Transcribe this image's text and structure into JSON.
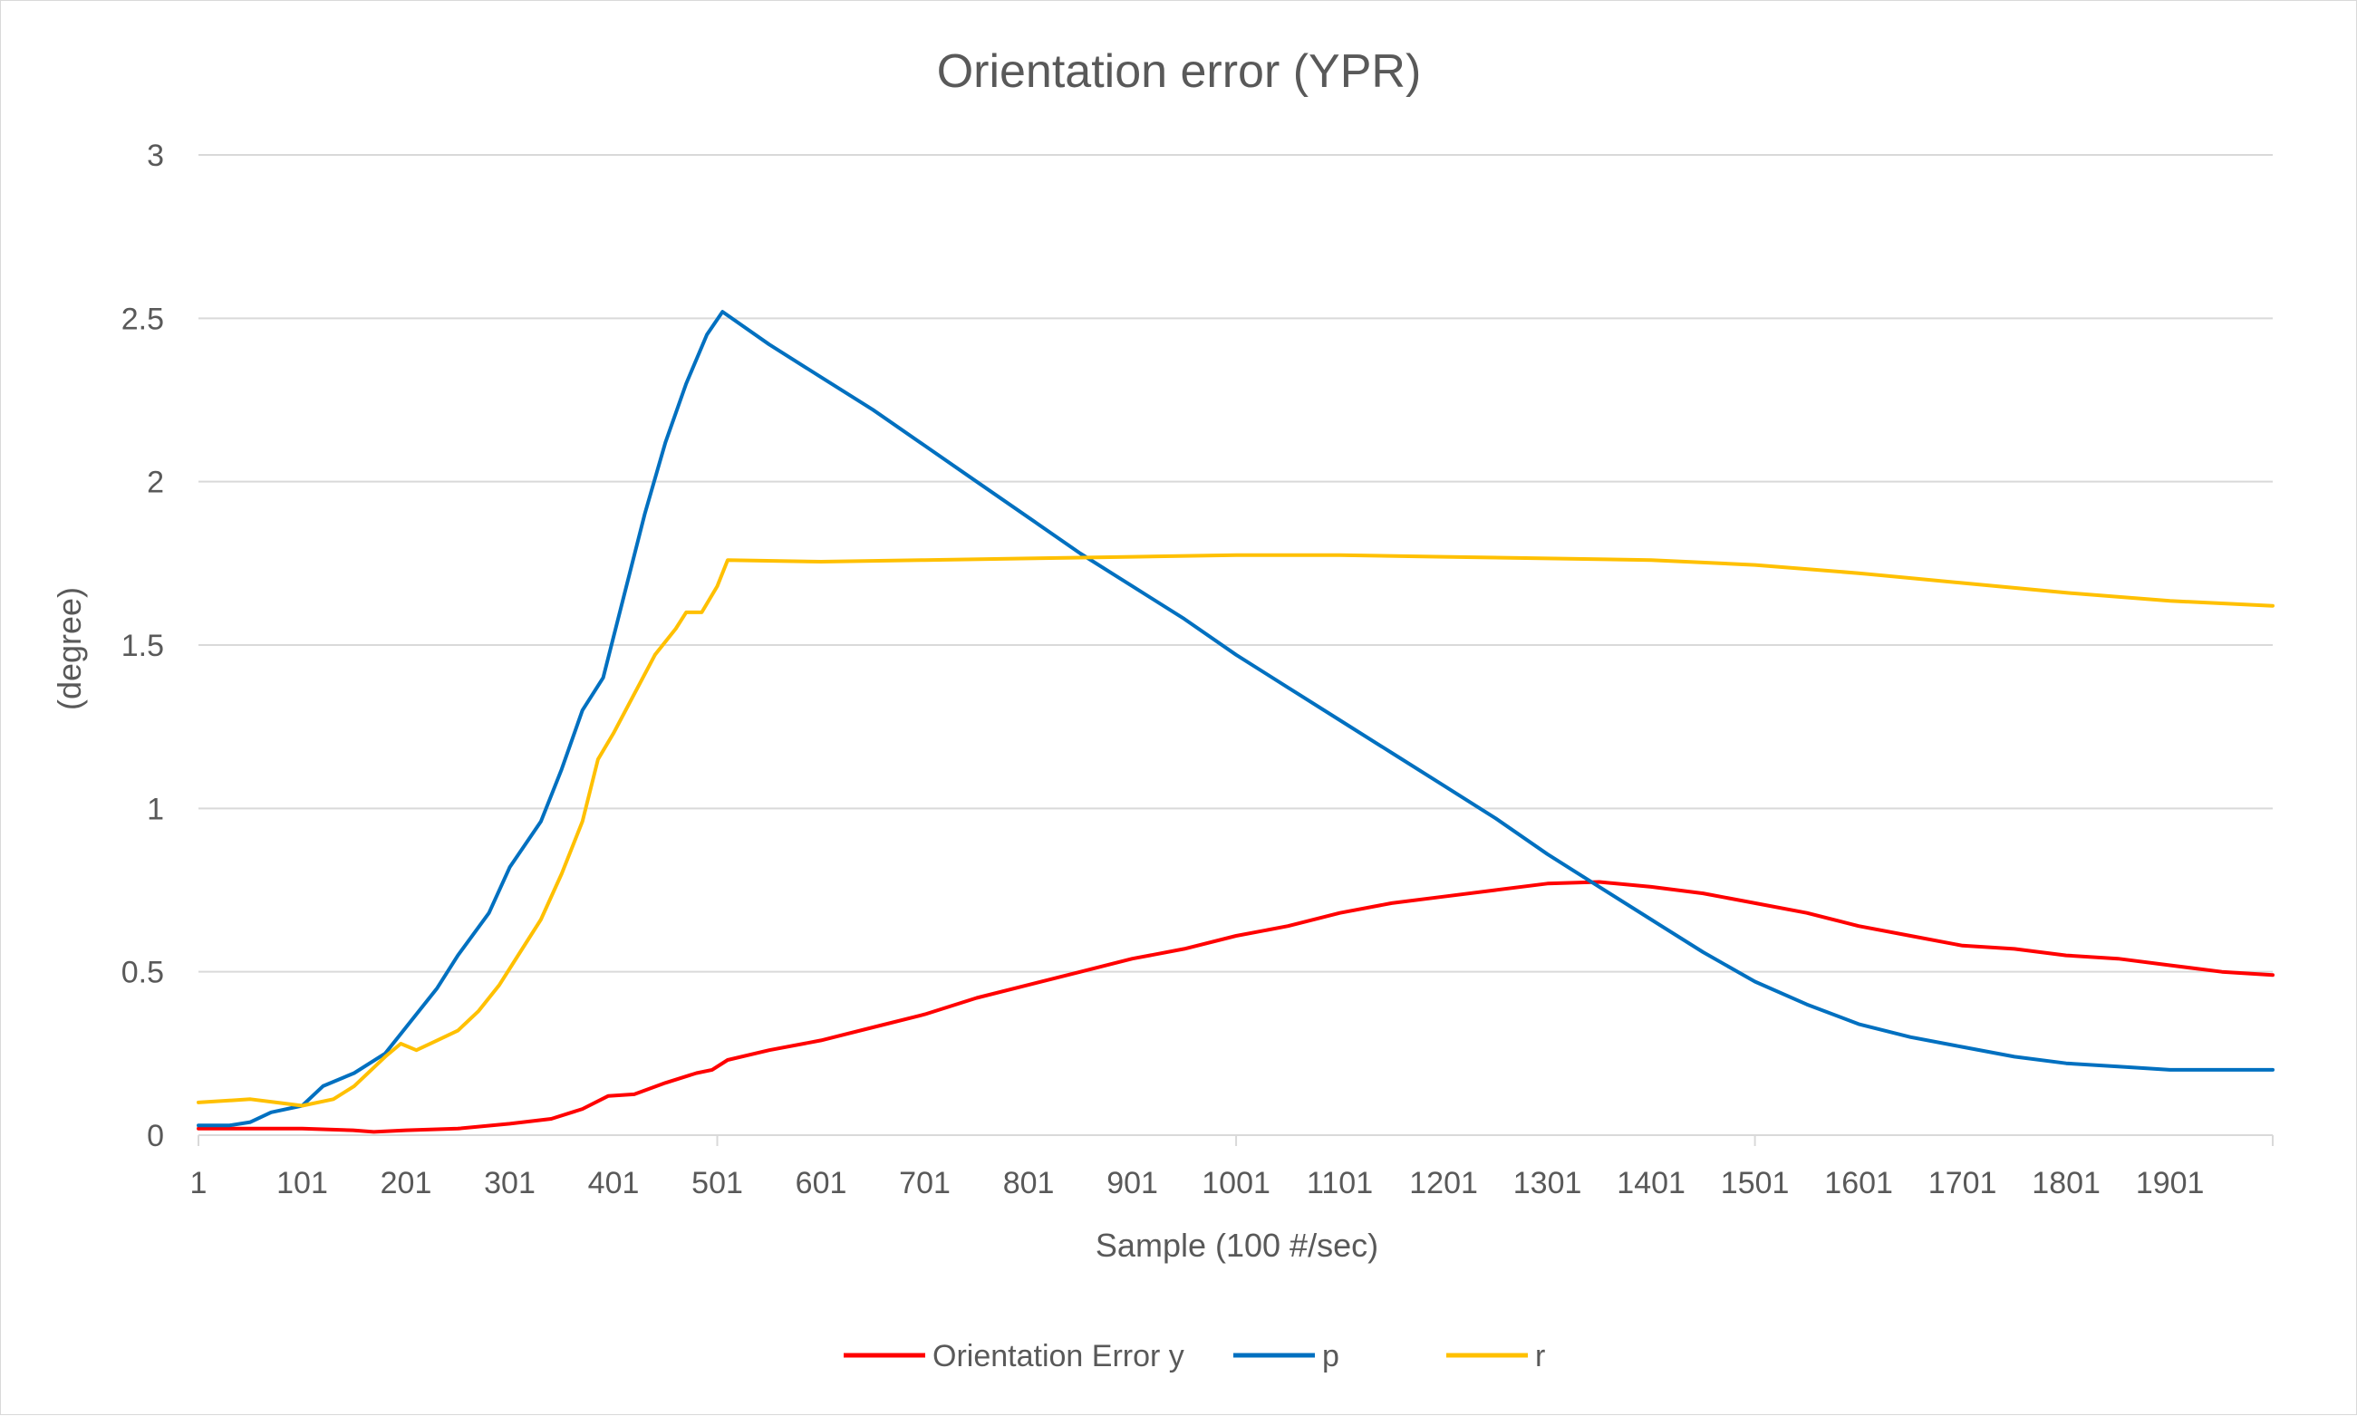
{
  "chart_data": {
    "type": "line",
    "title": "Orientation error (YPR)",
    "xlabel": "Sample (100 #/sec)",
    "ylabel": "(degree)",
    "xlim": [
      1,
      2000
    ],
    "ylim": [
      0,
      3
    ],
    "x_ticks": [
      "1",
      "101",
      "201",
      "301",
      "401",
      "501",
      "601",
      "701",
      "801",
      "901",
      "1001",
      "1101",
      "1201",
      "1301",
      "1401",
      "1501",
      "1601",
      "1701",
      "1801",
      "1901"
    ],
    "y_ticks": [
      "0",
      "0.5",
      "1",
      "1.5",
      "2",
      "2.5",
      "3"
    ],
    "grid": true,
    "legend_position": "bottom",
    "series": [
      {
        "name": "Orientation Error y",
        "color": "#ff0000",
        "points": [
          [
            1,
            0.02
          ],
          [
            101,
            0.02
          ],
          [
            150,
            0.015
          ],
          [
            170,
            0.01
          ],
          [
            201,
            0.015
          ],
          [
            251,
            0.02
          ],
          [
            301,
            0.035
          ],
          [
            341,
            0.05
          ],
          [
            371,
            0.08
          ],
          [
            396,
            0.12
          ],
          [
            421,
            0.125
          ],
          [
            451,
            0.16
          ],
          [
            481,
            0.19
          ],
          [
            496,
            0.2
          ],
          [
            511,
            0.23
          ],
          [
            551,
            0.26
          ],
          [
            601,
            0.29
          ],
          [
            651,
            0.33
          ],
          [
            701,
            0.37
          ],
          [
            751,
            0.42
          ],
          [
            801,
            0.46
          ],
          [
            851,
            0.5
          ],
          [
            901,
            0.54
          ],
          [
            951,
            0.57
          ],
          [
            1001,
            0.61
          ],
          [
            1051,
            0.64
          ],
          [
            1101,
            0.68
          ],
          [
            1151,
            0.71
          ],
          [
            1201,
            0.73
          ],
          [
            1251,
            0.75
          ],
          [
            1301,
            0.77
          ],
          [
            1351,
            0.775
          ],
          [
            1401,
            0.76
          ],
          [
            1451,
            0.74
          ],
          [
            1501,
            0.71
          ],
          [
            1551,
            0.68
          ],
          [
            1601,
            0.64
          ],
          [
            1651,
            0.61
          ],
          [
            1701,
            0.58
          ],
          [
            1751,
            0.57
          ],
          [
            1801,
            0.55
          ],
          [
            1851,
            0.54
          ],
          [
            1901,
            0.52
          ],
          [
            1951,
            0.5
          ],
          [
            2000,
            0.49
          ]
        ]
      },
      {
        "name": "p",
        "color": "#0070c0",
        "points": [
          [
            1,
            0.03
          ],
          [
            31,
            0.03
          ],
          [
            51,
            0.04
          ],
          [
            71,
            0.07
          ],
          [
            101,
            0.09
          ],
          [
            121,
            0.15
          ],
          [
            151,
            0.19
          ],
          [
            181,
            0.25
          ],
          [
            201,
            0.33
          ],
          [
            231,
            0.45
          ],
          [
            251,
            0.55
          ],
          [
            281,
            0.68
          ],
          [
            301,
            0.82
          ],
          [
            331,
            0.96
          ],
          [
            351,
            1.12
          ],
          [
            371,
            1.3
          ],
          [
            391,
            1.4
          ],
          [
            411,
            1.65
          ],
          [
            431,
            1.9
          ],
          [
            451,
            2.12
          ],
          [
            471,
            2.3
          ],
          [
            491,
            2.45
          ],
          [
            506,
            2.52
          ],
          [
            551,
            2.42
          ],
          [
            601,
            2.32
          ],
          [
            651,
            2.22
          ],
          [
            701,
            2.11
          ],
          [
            751,
            2.0
          ],
          [
            801,
            1.89
          ],
          [
            851,
            1.78
          ],
          [
            901,
            1.68
          ],
          [
            951,
            1.58
          ],
          [
            1001,
            1.47
          ],
          [
            1051,
            1.37
          ],
          [
            1101,
            1.27
          ],
          [
            1151,
            1.17
          ],
          [
            1201,
            1.07
          ],
          [
            1251,
            0.97
          ],
          [
            1301,
            0.86
          ],
          [
            1351,
            0.76
          ],
          [
            1401,
            0.66
          ],
          [
            1451,
            0.56
          ],
          [
            1501,
            0.47
          ],
          [
            1551,
            0.4
          ],
          [
            1601,
            0.34
          ],
          [
            1651,
            0.3
          ],
          [
            1701,
            0.27
          ],
          [
            1751,
            0.24
          ],
          [
            1801,
            0.22
          ],
          [
            1851,
            0.21
          ],
          [
            1901,
            0.2
          ],
          [
            2000,
            0.2
          ]
        ]
      },
      {
        "name": "r",
        "color": "#ffc000",
        "points": [
          [
            1,
            0.1
          ],
          [
            51,
            0.11
          ],
          [
            76,
            0.1
          ],
          [
            101,
            0.09
          ],
          [
            131,
            0.11
          ],
          [
            151,
            0.15
          ],
          [
            181,
            0.24
          ],
          [
            196,
            0.28
          ],
          [
            211,
            0.26
          ],
          [
            231,
            0.29
          ],
          [
            251,
            0.32
          ],
          [
            271,
            0.38
          ],
          [
            291,
            0.46
          ],
          [
            311,
            0.56
          ],
          [
            331,
            0.66
          ],
          [
            351,
            0.8
          ],
          [
            371,
            0.96
          ],
          [
            386,
            1.15
          ],
          [
            401,
            1.23
          ],
          [
            421,
            1.35
          ],
          [
            441,
            1.47
          ],
          [
            461,
            1.55
          ],
          [
            471,
            1.6
          ],
          [
            486,
            1.6
          ],
          [
            501,
            1.68
          ],
          [
            511,
            1.76
          ],
          [
            601,
            1.755
          ],
          [
            701,
            1.76
          ],
          [
            801,
            1.765
          ],
          [
            901,
            1.77
          ],
          [
            1001,
            1.775
          ],
          [
            1101,
            1.775
          ],
          [
            1201,
            1.77
          ],
          [
            1301,
            1.765
          ],
          [
            1401,
            1.76
          ],
          [
            1501,
            1.745
          ],
          [
            1601,
            1.72
          ],
          [
            1701,
            1.69
          ],
          [
            1801,
            1.66
          ],
          [
            1901,
            1.635
          ],
          [
            2000,
            1.62
          ]
        ]
      }
    ]
  }
}
